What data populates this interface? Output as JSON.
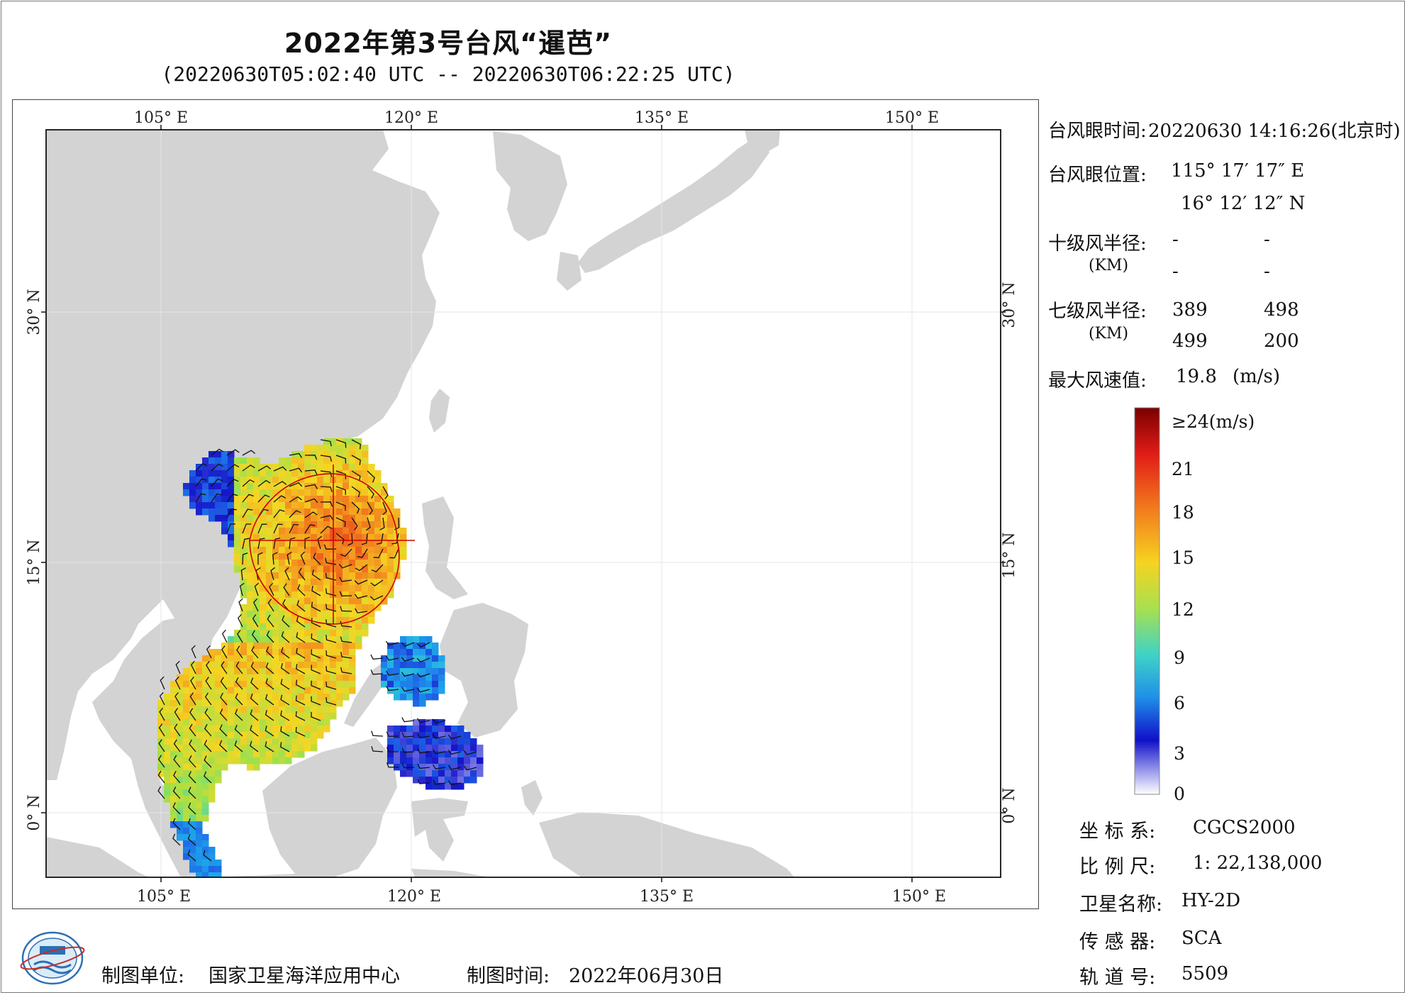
{
  "title": "2022年第3号台风“暹芭”",
  "subtitle": "(20220630T05:02:40 UTC -- 20220630T06:22:25 UTC)",
  "axes": {
    "top_lon": [
      "105° E",
      "120° E",
      "135° E",
      "150° E"
    ],
    "bottom_lon": [
      "105° E",
      "120° E",
      "135° E",
      "150° E"
    ],
    "left_lat": [
      "30° N",
      "15° N",
      "0° N"
    ],
    "right_lat": [
      "30° N",
      "15° N",
      "0° N"
    ]
  },
  "info": {
    "eye_time_label": "台风眼时间:",
    "eye_time_value": "20220630 14:16:26(北京时)",
    "eye_pos_label": "台风眼位置:",
    "eye_lon": "115° 17′ 17″ E",
    "eye_lat": "16° 12′ 12″ N",
    "r10_label": "十级风半径:",
    "r10_unit": "(KM)",
    "r10_values": [
      "-",
      "-",
      "-",
      "-"
    ],
    "r7_label": "七级风半径:",
    "r7_unit": "(KM)",
    "r7_values": [
      "389",
      "498",
      "499",
      "200"
    ],
    "max_wind_label": "最大风速值:",
    "max_wind_value": "19.8",
    "max_wind_unit": "(m/s)"
  },
  "colorbar": {
    "labels": [
      "≥24(m/s)",
      "21",
      "18",
      "15",
      "12",
      "9",
      "6",
      "3",
      "0"
    ],
    "colors": [
      "#8b0000",
      "#e8211a",
      "#f27a1e",
      "#f6d321",
      "#b8e04a",
      "#56d6a8",
      "#1fb8e8",
      "#1f5fe0",
      "#1010c8",
      "#ffffff"
    ]
  },
  "meta": {
    "crs_label": "坐 标 系:",
    "crs_value": "CGCS2000",
    "scale_label": "比 例 尺:",
    "scale_value": "1: 22,138,000",
    "satellite_label": "卫星名称:",
    "satellite_value": "HY-2D",
    "sensor_label": "传 感 器:",
    "sensor_value": "SCA",
    "orbit_label": "轨 道 号:",
    "orbit_value": "5509"
  },
  "footer": {
    "unit_label": "制图单位:",
    "unit_value": "国家卫星海洋应用中心",
    "time_label": "制图时间:",
    "time_value": "2022年06月30日"
  },
  "map": {
    "land_color": "#d3d3d3",
    "sea_color": "#ffffff",
    "wind_radius_color": "#cc0000"
  }
}
